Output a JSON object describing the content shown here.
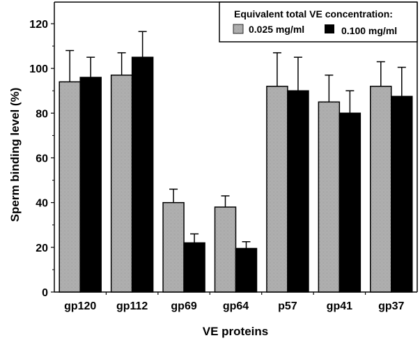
{
  "chart_data": {
    "type": "bar",
    "title": "",
    "xlabel": "VE proteins",
    "ylabel": "Sperm binding level (%)",
    "ylim": [
      0,
      130
    ],
    "yticks": [
      0,
      20,
      40,
      60,
      80,
      100,
      120
    ],
    "yticks_minor": [
      10,
      30,
      50,
      70,
      90,
      110
    ],
    "grid": false,
    "categories": [
      "gp120",
      "gp112",
      "gp69",
      "gp64",
      "p57",
      "gp41",
      "gp37"
    ],
    "legend": {
      "title": "Equivalent total VE concentration:",
      "placement": "top-right"
    },
    "series": [
      {
        "name": "0.025 mg/ml",
        "fill": "dotted-gray",
        "color": "#b4b4b4",
        "values": [
          94,
          97,
          40,
          38,
          92,
          85,
          92
        ],
        "error_upper": [
          14,
          10,
          6,
          5,
          15,
          12,
          11
        ]
      },
      {
        "name": "0.100 mg/ml",
        "fill": "solid",
        "color": "#000000",
        "values": [
          96,
          105,
          22,
          19.5,
          90,
          80,
          87.5
        ],
        "error_upper": [
          9,
          11.5,
          4,
          3,
          15,
          10,
          13
        ]
      }
    ]
  }
}
